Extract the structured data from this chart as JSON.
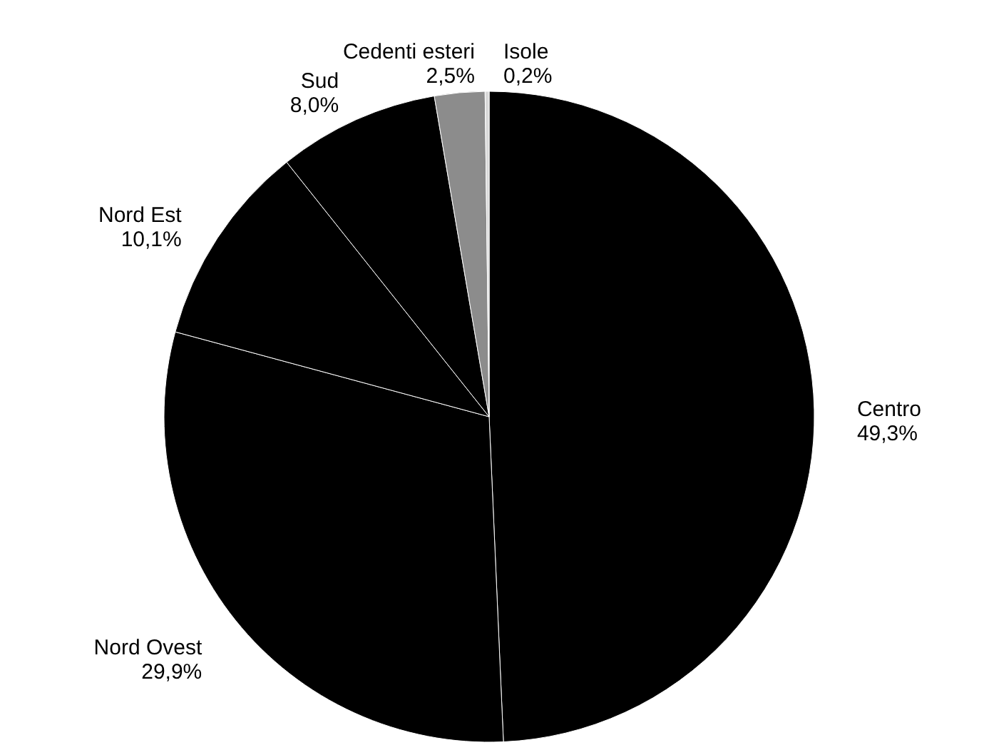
{
  "chart_data": {
    "type": "pie",
    "categories": [
      "Centro",
      "Nord Ovest",
      "Nord Est",
      "Sud",
      "Cedenti esteri",
      "Isole"
    ],
    "values": [
      49.3,
      29.9,
      10.1,
      8.0,
      2.5,
      0.2
    ],
    "value_labels": [
      "49,3%",
      "29,9%",
      "10,1%",
      "8,0%",
      "2,5%",
      "0,2%"
    ],
    "colors": [
      "#000000",
      "#000000",
      "#000000",
      "#000000",
      "#8c8c8c",
      "#d9d9d9"
    ]
  }
}
